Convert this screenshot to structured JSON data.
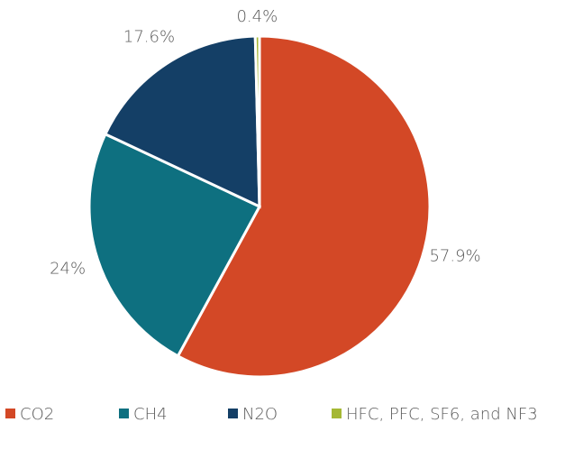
{
  "chart_data": {
    "type": "pie",
    "categories": [
      "CO2",
      "CH4",
      "N2O",
      "HFC, PFC, SF6, and NF3"
    ],
    "values": [
      57.9,
      24,
      17.6,
      0.4
    ],
    "value_labels": [
      "57.9%",
      "24%",
      "17.6%",
      "0.4%"
    ],
    "colors": [
      "#d34826",
      "#0e7080",
      "#143f66",
      "#a5b834"
    ],
    "legend": "bottom"
  }
}
